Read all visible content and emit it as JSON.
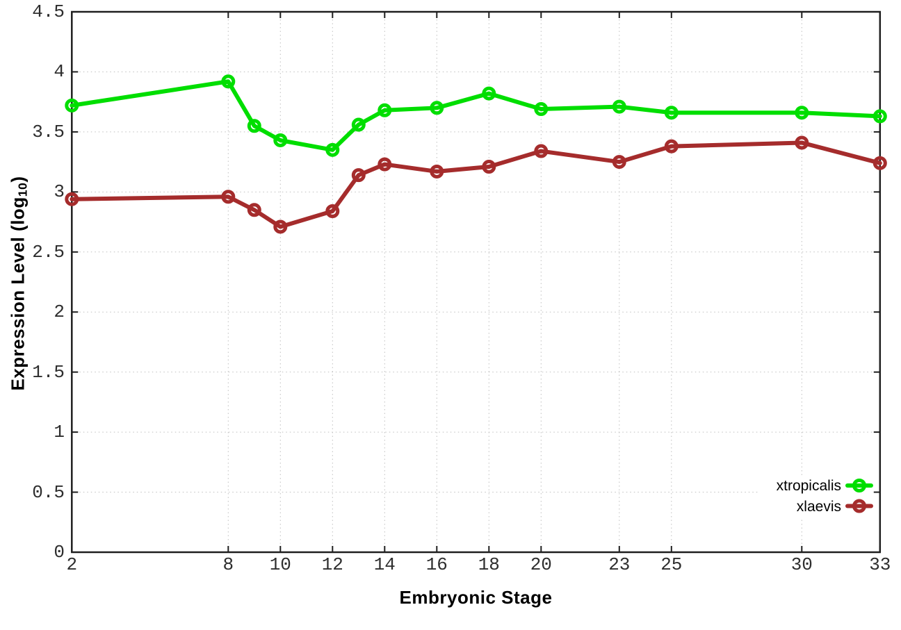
{
  "figure": {
    "background_color": "#ffffff",
    "axes": {
      "x_label": "Embryonic Stage",
      "y_label_main": "Expression Level (log",
      "y_label_sub": "10",
      "y_label_close": ")"
    }
  },
  "chart_data": {
    "type": "line",
    "title": "",
    "xlabel": "Embryonic Stage",
    "ylabel": "Expression Level (log10)",
    "x": [
      2,
      8,
      9,
      10,
      12,
      13,
      14,
      16,
      18,
      20,
      23,
      25,
      30,
      33
    ],
    "series": [
      {
        "name": "xtropicalis",
        "color": "#00DE00",
        "marker": "open-circle",
        "values": [
          3.72,
          3.92,
          3.55,
          3.43,
          3.35,
          3.56,
          3.68,
          3.7,
          3.82,
          3.69,
          3.71,
          3.66,
          3.66,
          3.63
        ]
      },
      {
        "name": "xlaevis",
        "color": "#A52C2C",
        "marker": "open-circle",
        "values": [
          2.94,
          2.96,
          2.85,
          2.71,
          2.84,
          3.14,
          3.23,
          3.17,
          3.21,
          3.34,
          3.25,
          3.38,
          3.41,
          3.24
        ]
      }
    ],
    "xlim": [
      2,
      33
    ],
    "ylim": [
      0,
      4.5
    ],
    "xticks": [
      2,
      8,
      10,
      12,
      14,
      16,
      18,
      20,
      23,
      25,
      30,
      33
    ],
    "yticks": [
      0,
      0.5,
      1,
      1.5,
      2,
      2.5,
      3,
      3.5,
      4,
      4.5
    ],
    "grid": true,
    "grid_style": "dotted",
    "grid_color": "#bfbfbf",
    "border_color": "#1f1f1f",
    "legend_position": "inside-bottom-right",
    "legend_entries": [
      "xtropicalis",
      "xlaevis"
    ]
  }
}
